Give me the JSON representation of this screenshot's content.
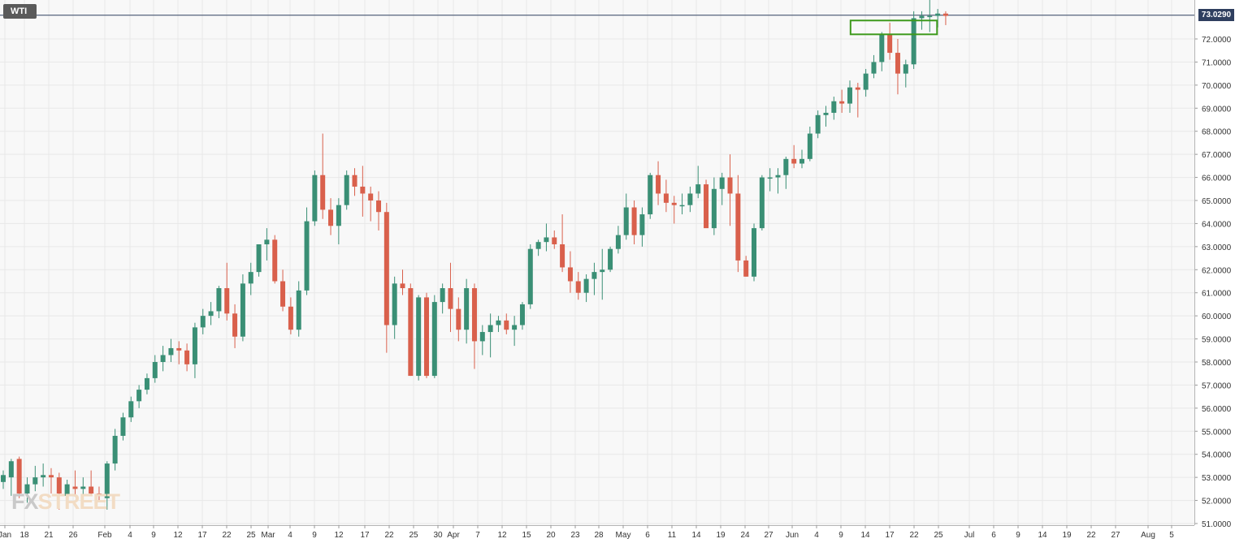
{
  "symbol": "WTI",
  "current_price_label": "73.0290",
  "watermark": {
    "prefix": "FX",
    "suffix": "STREET"
  },
  "colors": {
    "up": "#3a8f75",
    "down": "#d9604c",
    "grid": "#e8e8e8",
    "price_line": "#2f3f5f",
    "highlight_box": "#3e9a1c",
    "axis_text": "#333333"
  },
  "chart_data": {
    "type": "candlestick",
    "title": "",
    "xlabel": "",
    "ylabel": "",
    "ylim": [
      50.9,
      74.0
    ],
    "grid": true,
    "x_tick_labels": [
      "Jan",
      "18",
      "21",
      "26",
      "Feb",
      "4",
      "9",
      "12",
      "17",
      "22",
      "25",
      "Mar",
      "4",
      "9",
      "12",
      "17",
      "22",
      "25",
      "30",
      "Apr",
      "7",
      "12",
      "15",
      "20",
      "23",
      "28",
      "May",
      "6",
      "11",
      "14",
      "19",
      "24",
      "27",
      "Jun",
      "4",
      "9",
      "14",
      "17",
      "22",
      "25",
      "Jul",
      "6",
      "9",
      "14",
      "19",
      "22",
      "27",
      "Aug",
      "5"
    ],
    "y_tick_labels": [
      "51.0000",
      "52.0000",
      "53.0000",
      "54.0000",
      "55.0000",
      "56.0000",
      "57.0000",
      "58.0000",
      "59.0000",
      "60.0000",
      "61.0000",
      "62.0000",
      "63.0000",
      "64.0000",
      "65.0000",
      "66.0000",
      "67.0000",
      "68.0000",
      "69.0000",
      "70.0000",
      "71.0000",
      "72.0000"
    ],
    "current_price": 73.029,
    "highlight_zone": {
      "start_index": 107,
      "end_index": 116,
      "low": 72.2,
      "high": 72.8
    },
    "candles": [
      {
        "o": 52.8,
        "h": 53.3,
        "l": 52.5,
        "c": 53.1
      },
      {
        "o": 53.0,
        "h": 53.8,
        "l": 52.2,
        "c": 53.7
      },
      {
        "o": 53.8,
        "h": 53.9,
        "l": 52.1,
        "c": 52.3
      },
      {
        "o": 52.3,
        "h": 53.0,
        "l": 51.9,
        "c": 52.7
      },
      {
        "o": 52.7,
        "h": 53.5,
        "l": 52.4,
        "c": 53.0
      },
      {
        "o": 53.0,
        "h": 53.6,
        "l": 52.6,
        "c": 53.1
      },
      {
        "o": 53.1,
        "h": 53.4,
        "l": 52.3,
        "c": 53.0
      },
      {
        "o": 53.0,
        "h": 53.2,
        "l": 51.6,
        "c": 52.3
      },
      {
        "o": 52.2,
        "h": 52.9,
        "l": 51.7,
        "c": 52.7
      },
      {
        "o": 52.6,
        "h": 53.3,
        "l": 52.2,
        "c": 52.5
      },
      {
        "o": 52.5,
        "h": 53.0,
        "l": 52.0,
        "c": 52.6
      },
      {
        "o": 52.6,
        "h": 53.3,
        "l": 52.2,
        "c": 52.3
      },
      {
        "o": 52.3,
        "h": 52.6,
        "l": 52.0,
        "c": 52.2
      },
      {
        "o": 52.1,
        "h": 53.7,
        "l": 51.6,
        "c": 53.6
      },
      {
        "o": 53.6,
        "h": 55.1,
        "l": 53.3,
        "c": 54.8
      },
      {
        "o": 54.8,
        "h": 55.8,
        "l": 54.6,
        "c": 55.6
      },
      {
        "o": 55.6,
        "h": 56.5,
        "l": 55.4,
        "c": 56.3
      },
      {
        "o": 56.3,
        "h": 57.0,
        "l": 56.0,
        "c": 56.8
      },
      {
        "o": 56.8,
        "h": 57.5,
        "l": 56.6,
        "c": 57.3
      },
      {
        "o": 57.3,
        "h": 58.3,
        "l": 57.1,
        "c": 58.0
      },
      {
        "o": 58.0,
        "h": 58.7,
        "l": 57.6,
        "c": 58.3
      },
      {
        "o": 58.3,
        "h": 59.0,
        "l": 58.0,
        "c": 58.6
      },
      {
        "o": 58.6,
        "h": 58.9,
        "l": 57.9,
        "c": 58.5
      },
      {
        "o": 58.5,
        "h": 58.8,
        "l": 57.6,
        "c": 57.9
      },
      {
        "o": 57.9,
        "h": 59.7,
        "l": 57.3,
        "c": 59.5
      },
      {
        "o": 59.5,
        "h": 60.3,
        "l": 59.2,
        "c": 60.0
      },
      {
        "o": 60.0,
        "h": 60.6,
        "l": 59.6,
        "c": 60.2
      },
      {
        "o": 60.2,
        "h": 61.3,
        "l": 59.9,
        "c": 61.2
      },
      {
        "o": 61.2,
        "h": 62.3,
        "l": 59.8,
        "c": 60.1
      },
      {
        "o": 60.1,
        "h": 60.5,
        "l": 58.6,
        "c": 59.1
      },
      {
        "o": 59.1,
        "h": 61.8,
        "l": 58.9,
        "c": 61.4
      },
      {
        "o": 61.4,
        "h": 62.3,
        "l": 60.9,
        "c": 61.9
      },
      {
        "o": 61.9,
        "h": 63.1,
        "l": 61.7,
        "c": 63.1
      },
      {
        "o": 63.1,
        "h": 63.8,
        "l": 62.4,
        "c": 63.3
      },
      {
        "o": 63.3,
        "h": 63.5,
        "l": 61.4,
        "c": 61.5
      },
      {
        "o": 61.5,
        "h": 62.0,
        "l": 60.2,
        "c": 60.4
      },
      {
        "o": 60.4,
        "h": 60.8,
        "l": 59.2,
        "c": 59.4
      },
      {
        "o": 59.4,
        "h": 61.5,
        "l": 59.1,
        "c": 61.1
      },
      {
        "o": 61.1,
        "h": 64.7,
        "l": 60.9,
        "c": 64.1
      },
      {
        "o": 64.1,
        "h": 66.3,
        "l": 63.9,
        "c": 66.1
      },
      {
        "o": 66.1,
        "h": 67.9,
        "l": 64.2,
        "c": 64.6
      },
      {
        "o": 64.6,
        "h": 65.1,
        "l": 63.5,
        "c": 63.9
      },
      {
        "o": 63.9,
        "h": 65.1,
        "l": 63.1,
        "c": 64.8
      },
      {
        "o": 64.8,
        "h": 66.3,
        "l": 64.6,
        "c": 66.1
      },
      {
        "o": 66.1,
        "h": 66.4,
        "l": 65.2,
        "c": 65.6
      },
      {
        "o": 65.6,
        "h": 66.5,
        "l": 64.3,
        "c": 65.3
      },
      {
        "o": 65.3,
        "h": 65.6,
        "l": 64.1,
        "c": 65.0
      },
      {
        "o": 65.0,
        "h": 65.4,
        "l": 63.7,
        "c": 64.5
      },
      {
        "o": 64.5,
        "h": 64.9,
        "l": 58.4,
        "c": 59.6
      },
      {
        "o": 59.6,
        "h": 61.7,
        "l": 59.0,
        "c": 61.4
      },
      {
        "o": 61.4,
        "h": 62.0,
        "l": 60.9,
        "c": 61.2
      },
      {
        "o": 61.2,
        "h": 61.4,
        "l": 57.4,
        "c": 57.4
      },
      {
        "o": 57.4,
        "h": 60.9,
        "l": 57.2,
        "c": 60.8
      },
      {
        "o": 60.8,
        "h": 61.0,
        "l": 57.3,
        "c": 57.4
      },
      {
        "o": 57.4,
        "h": 60.9,
        "l": 57.3,
        "c": 60.6
      },
      {
        "o": 60.6,
        "h": 61.4,
        "l": 60.1,
        "c": 61.2
      },
      {
        "o": 61.2,
        "h": 62.3,
        "l": 59.3,
        "c": 60.3
      },
      {
        "o": 60.3,
        "h": 60.8,
        "l": 58.9,
        "c": 59.4
      },
      {
        "o": 59.4,
        "h": 61.6,
        "l": 58.8,
        "c": 61.2
      },
      {
        "o": 61.2,
        "h": 61.4,
        "l": 57.7,
        "c": 58.9
      },
      {
        "o": 58.9,
        "h": 59.6,
        "l": 58.3,
        "c": 59.3
      },
      {
        "o": 59.3,
        "h": 60.1,
        "l": 58.2,
        "c": 59.6
      },
      {
        "o": 59.6,
        "h": 60.0,
        "l": 59.3,
        "c": 59.8
      },
      {
        "o": 59.8,
        "h": 60.1,
        "l": 59.2,
        "c": 59.4
      },
      {
        "o": 59.4,
        "h": 60.0,
        "l": 58.7,
        "c": 59.6
      },
      {
        "o": 59.6,
        "h": 60.6,
        "l": 59.4,
        "c": 60.5
      },
      {
        "o": 60.5,
        "h": 63.1,
        "l": 60.3,
        "c": 62.9
      },
      {
        "o": 62.9,
        "h": 63.3,
        "l": 62.6,
        "c": 63.2
      },
      {
        "o": 63.2,
        "h": 64.0,
        "l": 62.8,
        "c": 63.4
      },
      {
        "o": 63.4,
        "h": 63.7,
        "l": 62.9,
        "c": 63.1
      },
      {
        "o": 63.1,
        "h": 64.4,
        "l": 61.9,
        "c": 62.1
      },
      {
        "o": 62.1,
        "h": 62.8,
        "l": 61.0,
        "c": 61.5
      },
      {
        "o": 61.5,
        "h": 61.9,
        "l": 60.7,
        "c": 61.0
      },
      {
        "o": 61.0,
        "h": 61.8,
        "l": 60.6,
        "c": 61.6
      },
      {
        "o": 61.6,
        "h": 62.3,
        "l": 60.9,
        "c": 61.9
      },
      {
        "o": 61.9,
        "h": 62.9,
        "l": 60.7,
        "c": 62.0
      },
      {
        "o": 62.0,
        "h": 63.0,
        "l": 61.9,
        "c": 62.9
      },
      {
        "o": 62.9,
        "h": 63.9,
        "l": 62.7,
        "c": 63.5
      },
      {
        "o": 63.5,
        "h": 65.3,
        "l": 63.3,
        "c": 64.7
      },
      {
        "o": 64.7,
        "h": 65.0,
        "l": 63.1,
        "c": 63.5
      },
      {
        "o": 63.5,
        "h": 64.7,
        "l": 63.0,
        "c": 64.4
      },
      {
        "o": 64.4,
        "h": 66.2,
        "l": 64.2,
        "c": 66.1
      },
      {
        "o": 66.1,
        "h": 66.7,
        "l": 64.8,
        "c": 65.3
      },
      {
        "o": 65.3,
        "h": 65.9,
        "l": 64.5,
        "c": 64.9
      },
      {
        "o": 64.9,
        "h": 65.2,
        "l": 64.0,
        "c": 64.8
      },
      {
        "o": 64.8,
        "h": 65.3,
        "l": 64.4,
        "c": 64.8
      },
      {
        "o": 64.8,
        "h": 65.6,
        "l": 64.5,
        "c": 65.3
      },
      {
        "o": 65.3,
        "h": 66.5,
        "l": 65.1,
        "c": 65.7
      },
      {
        "o": 65.7,
        "h": 65.9,
        "l": 63.9,
        "c": 63.8
      },
      {
        "o": 63.8,
        "h": 66.0,
        "l": 63.5,
        "c": 65.5
      },
      {
        "o": 65.5,
        "h": 66.2,
        "l": 64.8,
        "c": 66.0
      },
      {
        "o": 66.0,
        "h": 67.0,
        "l": 63.9,
        "c": 65.3
      },
      {
        "o": 65.3,
        "h": 66.1,
        "l": 61.9,
        "c": 62.4
      },
      {
        "o": 62.4,
        "h": 62.6,
        "l": 61.7,
        "c": 61.7
      },
      {
        "o": 61.7,
        "h": 64.0,
        "l": 61.5,
        "c": 63.8
      },
      {
        "o": 63.8,
        "h": 66.1,
        "l": 63.7,
        "c": 66.0
      },
      {
        "o": 66.0,
        "h": 66.4,
        "l": 65.4,
        "c": 66.0
      },
      {
        "o": 66.0,
        "h": 66.4,
        "l": 65.3,
        "c": 66.1
      },
      {
        "o": 66.1,
        "h": 66.9,
        "l": 65.5,
        "c": 66.8
      },
      {
        "o": 66.8,
        "h": 67.4,
        "l": 66.4,
        "c": 66.6
      },
      {
        "o": 66.6,
        "h": 67.2,
        "l": 66.4,
        "c": 66.8
      },
      {
        "o": 66.8,
        "h": 68.2,
        "l": 66.7,
        "c": 67.9
      },
      {
        "o": 67.9,
        "h": 68.9,
        "l": 67.7,
        "c": 68.7
      },
      {
        "o": 68.7,
        "h": 69.1,
        "l": 68.2,
        "c": 68.8
      },
      {
        "o": 68.8,
        "h": 69.5,
        "l": 68.5,
        "c": 69.3
      },
      {
        "o": 69.3,
        "h": 69.8,
        "l": 68.8,
        "c": 69.2
      },
      {
        "o": 69.2,
        "h": 70.2,
        "l": 68.8,
        "c": 69.9
      },
      {
        "o": 69.9,
        "h": 70.1,
        "l": 68.6,
        "c": 69.8
      },
      {
        "o": 69.8,
        "h": 70.7,
        "l": 69.5,
        "c": 70.5
      },
      {
        "o": 70.5,
        "h": 71.3,
        "l": 70.3,
        "c": 71.0
      },
      {
        "o": 71.0,
        "h": 72.3,
        "l": 70.6,
        "c": 72.2
      },
      {
        "o": 72.2,
        "h": 72.7,
        "l": 71.1,
        "c": 71.4
      },
      {
        "o": 71.4,
        "h": 72.0,
        "l": 69.6,
        "c": 70.5
      },
      {
        "o": 70.5,
        "h": 71.1,
        "l": 69.9,
        "c": 70.9
      },
      {
        "o": 70.9,
        "h": 73.2,
        "l": 70.7,
        "c": 72.9
      },
      {
        "o": 72.9,
        "h": 73.2,
        "l": 72.4,
        "c": 73.0
      },
      {
        "o": 73.0,
        "h": 73.7,
        "l": 72.3,
        "c": 73.0
      },
      {
        "o": 73.0,
        "h": 73.3,
        "l": 72.5,
        "c": 73.1
      },
      {
        "o": 73.1,
        "h": 73.2,
        "l": 72.6,
        "c": 73.0
      }
    ]
  }
}
